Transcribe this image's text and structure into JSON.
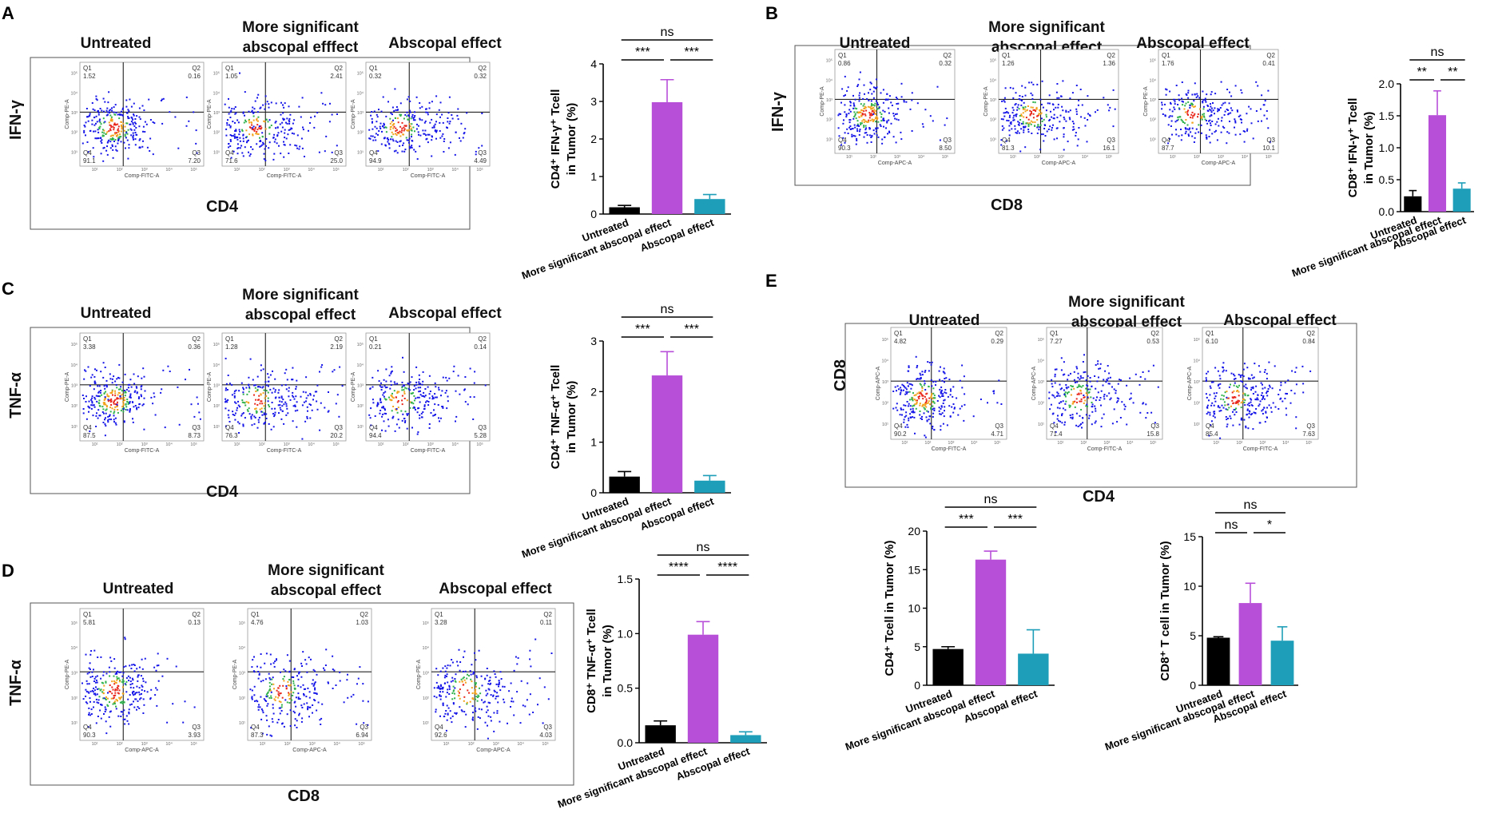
{
  "figure": {
    "panels": [
      {
        "letter": "A",
        "marker": "CD4",
        "cytokine": "IFN-γ",
        "group_titles": [
          [
            "Untreated"
          ],
          [
            "More significant",
            "abscopal efffect"
          ],
          [
            "Abscopal effect"
          ]
        ],
        "x_channel": "Comp-FITC-A",
        "y_channel": "Comp-PE-A",
        "plots": [
          {
            "q1": "1.52",
            "q2": "0.16",
            "q3": "7.20",
            "q4": "91.1"
          },
          {
            "q1": "1.05",
            "q2": "2.41",
            "q3": "25.0",
            "q4": "71.6"
          },
          {
            "q1": "0.32",
            "q2": "0.32",
            "q3": "4.49",
            "q4": "94.9"
          }
        ]
      },
      {
        "letter": "B",
        "marker": "CD8",
        "cytokine": "IFN-γ",
        "group_titles": [
          [
            "Untreated"
          ],
          [
            "More significant",
            "abscopal effect"
          ],
          [
            "Abscopal effect"
          ]
        ],
        "x_channel": "Comp-APC-A",
        "y_channel": "Comp-PE-A",
        "plots": [
          {
            "q1": "0.86",
            "q2": "0.32",
            "q3": "8.50",
            "q4": "90.3"
          },
          {
            "q1": "1.26",
            "q2": "1.36",
            "q3": "16.1",
            "q4": "81.3"
          },
          {
            "q1": "1.76",
            "q2": "0.41",
            "q3": "10.1",
            "q4": "87.7"
          }
        ]
      },
      {
        "letter": "C",
        "marker": "CD4",
        "cytokine": "TNF-α",
        "group_titles": [
          [
            "Untreated"
          ],
          [
            "More significant",
            "abscopal effect"
          ],
          [
            "Abscopal effect"
          ]
        ],
        "x_channel": "Comp-FITC-A",
        "y_channel": "Comp-PE-A",
        "plots": [
          {
            "q1": "3.38",
            "q2": "0.36",
            "q3": "8.73",
            "q4": "87.5"
          },
          {
            "q1": "1.28",
            "q2": "2.19",
            "q3": "20.2",
            "q4": "76.3"
          },
          {
            "q1": "0.21",
            "q2": "0.14",
            "q3": "5.28",
            "q4": "94.4"
          }
        ]
      },
      {
        "letter": "D",
        "marker": "CD8",
        "cytokine": "TNF-α",
        "group_titles": [
          [
            "Untreated"
          ],
          [
            "More significant",
            "abscopal effect"
          ],
          [
            "Abscopal effect"
          ]
        ],
        "x_channel": "Comp-APC-A",
        "y_channel": "Comp-PE-A",
        "plots": [
          {
            "q1": "5.81",
            "q2": "0.13",
            "q3": "3.93",
            "q4": "90.3"
          },
          {
            "q1": "4.76",
            "q2": "1.03",
            "q3": "6.94",
            "q4": "87.3"
          },
          {
            "q1": "3.28",
            "q2": "0.11",
            "q3": "4.03",
            "q4": "92.6"
          }
        ]
      },
      {
        "letter": "E",
        "marker": "CD4",
        "cytokine": "CD8",
        "group_titles": [
          [
            "Untreated"
          ],
          [
            "More significant",
            "abscopal effect"
          ],
          [
            "Abscopal effect"
          ]
        ],
        "x_channel": "Comp-FITC-A",
        "y_channel": "Comp-APC-A",
        "plots": [
          {
            "q1": "4.82",
            "q2": "0.29",
            "q3": "4.71",
            "q4": "90.2"
          },
          {
            "q1": "7.27",
            "q2": "0.53",
            "q3": "15.8",
            "q4": "71.4"
          },
          {
            "q1": "6.10",
            "q2": "0.84",
            "q3": "7.63",
            "q4": "85.4"
          }
        ]
      }
    ]
  },
  "chart_data": [
    {
      "panel": "A",
      "type": "bar",
      "categories": [
        "Untreated",
        "More significant abscopal effect",
        "Abscopal effect"
      ],
      "values": [
        0.18,
        2.98,
        0.4
      ],
      "errors": [
        0.05,
        0.6,
        0.12
      ],
      "ylabel_lines": [
        "CD4⁺ IFN-γ⁺ Tcell",
        "in Tumor  (%)"
      ],
      "ylim": [
        0,
        4
      ],
      "yticks": [
        "0",
        "1",
        "2",
        "3",
        "4"
      ],
      "significance": [
        {
          "from": 1,
          "to": 2,
          "label": "***"
        },
        {
          "from": 2,
          "to": 3,
          "label": "***"
        },
        {
          "from": 1,
          "to": 3,
          "label": "ns"
        }
      ]
    },
    {
      "panel": "B",
      "type": "bar",
      "categories": [
        "Untreated",
        "More significant abscopal effect",
        "Abscopal effect"
      ],
      "values": [
        0.24,
        1.51,
        0.36
      ],
      "errors": [
        0.09,
        0.38,
        0.09
      ],
      "ylabel_lines": [
        "CD8⁺ IFN-γ⁺ Tcell",
        "in Tumor (%)"
      ],
      "ylim": [
        0,
        2
      ],
      "yticks": [
        "0.0",
        "0.5",
        "1.0",
        "1.5",
        "2.0"
      ],
      "significance": [
        {
          "from": 1,
          "to": 2,
          "label": "**"
        },
        {
          "from": 2,
          "to": 3,
          "label": "**"
        },
        {
          "from": 1,
          "to": 3,
          "label": "ns"
        }
      ]
    },
    {
      "panel": "C",
      "type": "bar",
      "categories": [
        "Untreated",
        "More significant abscopal effect",
        "Abscopal effect"
      ],
      "values": [
        0.32,
        2.32,
        0.24
      ],
      "errors": [
        0.1,
        0.47,
        0.1
      ],
      "ylabel_lines": [
        "CD4⁺ TNF-α⁺ Tcell",
        "in Tumor (%)"
      ],
      "ylim": [
        0,
        3
      ],
      "yticks": [
        "0",
        "1",
        "2",
        "3"
      ],
      "significance": [
        {
          "from": 1,
          "to": 2,
          "label": "***"
        },
        {
          "from": 2,
          "to": 3,
          "label": "***"
        },
        {
          "from": 1,
          "to": 3,
          "label": "ns"
        }
      ]
    },
    {
      "panel": "D",
      "type": "bar",
      "categories": [
        "Untreated",
        "More significant abscopal effect",
        "Abscopal effect"
      ],
      "values": [
        0.16,
        0.99,
        0.07
      ],
      "errors": [
        0.04,
        0.12,
        0.03
      ],
      "ylabel_lines": [
        "CD8⁺ TNF-α⁺ Tcell",
        "in Tumor (%)"
      ],
      "ylim": [
        0,
        1.5
      ],
      "yticks": [
        "0.0",
        "0.5",
        "1.0",
        "1.5"
      ],
      "significance": [
        {
          "from": 1,
          "to": 2,
          "label": "****"
        },
        {
          "from": 2,
          "to": 3,
          "label": "****"
        },
        {
          "from": 1,
          "to": 3,
          "label": "ns"
        }
      ]
    },
    {
      "panel": "E1",
      "type": "bar",
      "categories": [
        "Untreated",
        "More significant abscopal effect",
        "Abscopal effect"
      ],
      "values": [
        4.7,
        16.3,
        4.1
      ],
      "errors": [
        0.3,
        1.1,
        3.1
      ],
      "ylabel_lines": [
        "CD4⁺ Tcell in Tumor (%)"
      ],
      "ylim": [
        0,
        20
      ],
      "yticks": [
        "0",
        "5",
        "10",
        "15",
        "20"
      ],
      "significance": [
        {
          "from": 1,
          "to": 2,
          "label": "***"
        },
        {
          "from": 2,
          "to": 3,
          "label": "***"
        },
        {
          "from": 1,
          "to": 3,
          "label": "ns"
        }
      ]
    },
    {
      "panel": "E2",
      "type": "bar",
      "categories": [
        "Untreated",
        "More significant abscopal effect",
        "Abscopal effect"
      ],
      "values": [
        4.8,
        8.3,
        4.5
      ],
      "errors": [
        0.1,
        2.0,
        1.4
      ],
      "ylabel_lines": [
        "CD8⁺ T cell in Tumor (%)"
      ],
      "ylim": [
        0,
        15
      ],
      "yticks": [
        "0",
        "5",
        "10",
        "15"
      ],
      "significance": [
        {
          "from": 1,
          "to": 2,
          "label": "ns"
        },
        {
          "from": 2,
          "to": 3,
          "label": "*"
        },
        {
          "from": 1,
          "to": 3,
          "label": "ns"
        }
      ]
    }
  ],
  "colors": {
    "untreated": "#000000",
    "more_significant": "#b84fd9",
    "abscopal": "#1e9eb8",
    "error_more_significant": "#b84fd9",
    "scatter_blue": "#1515e8",
    "panel_letter": "#000000"
  }
}
